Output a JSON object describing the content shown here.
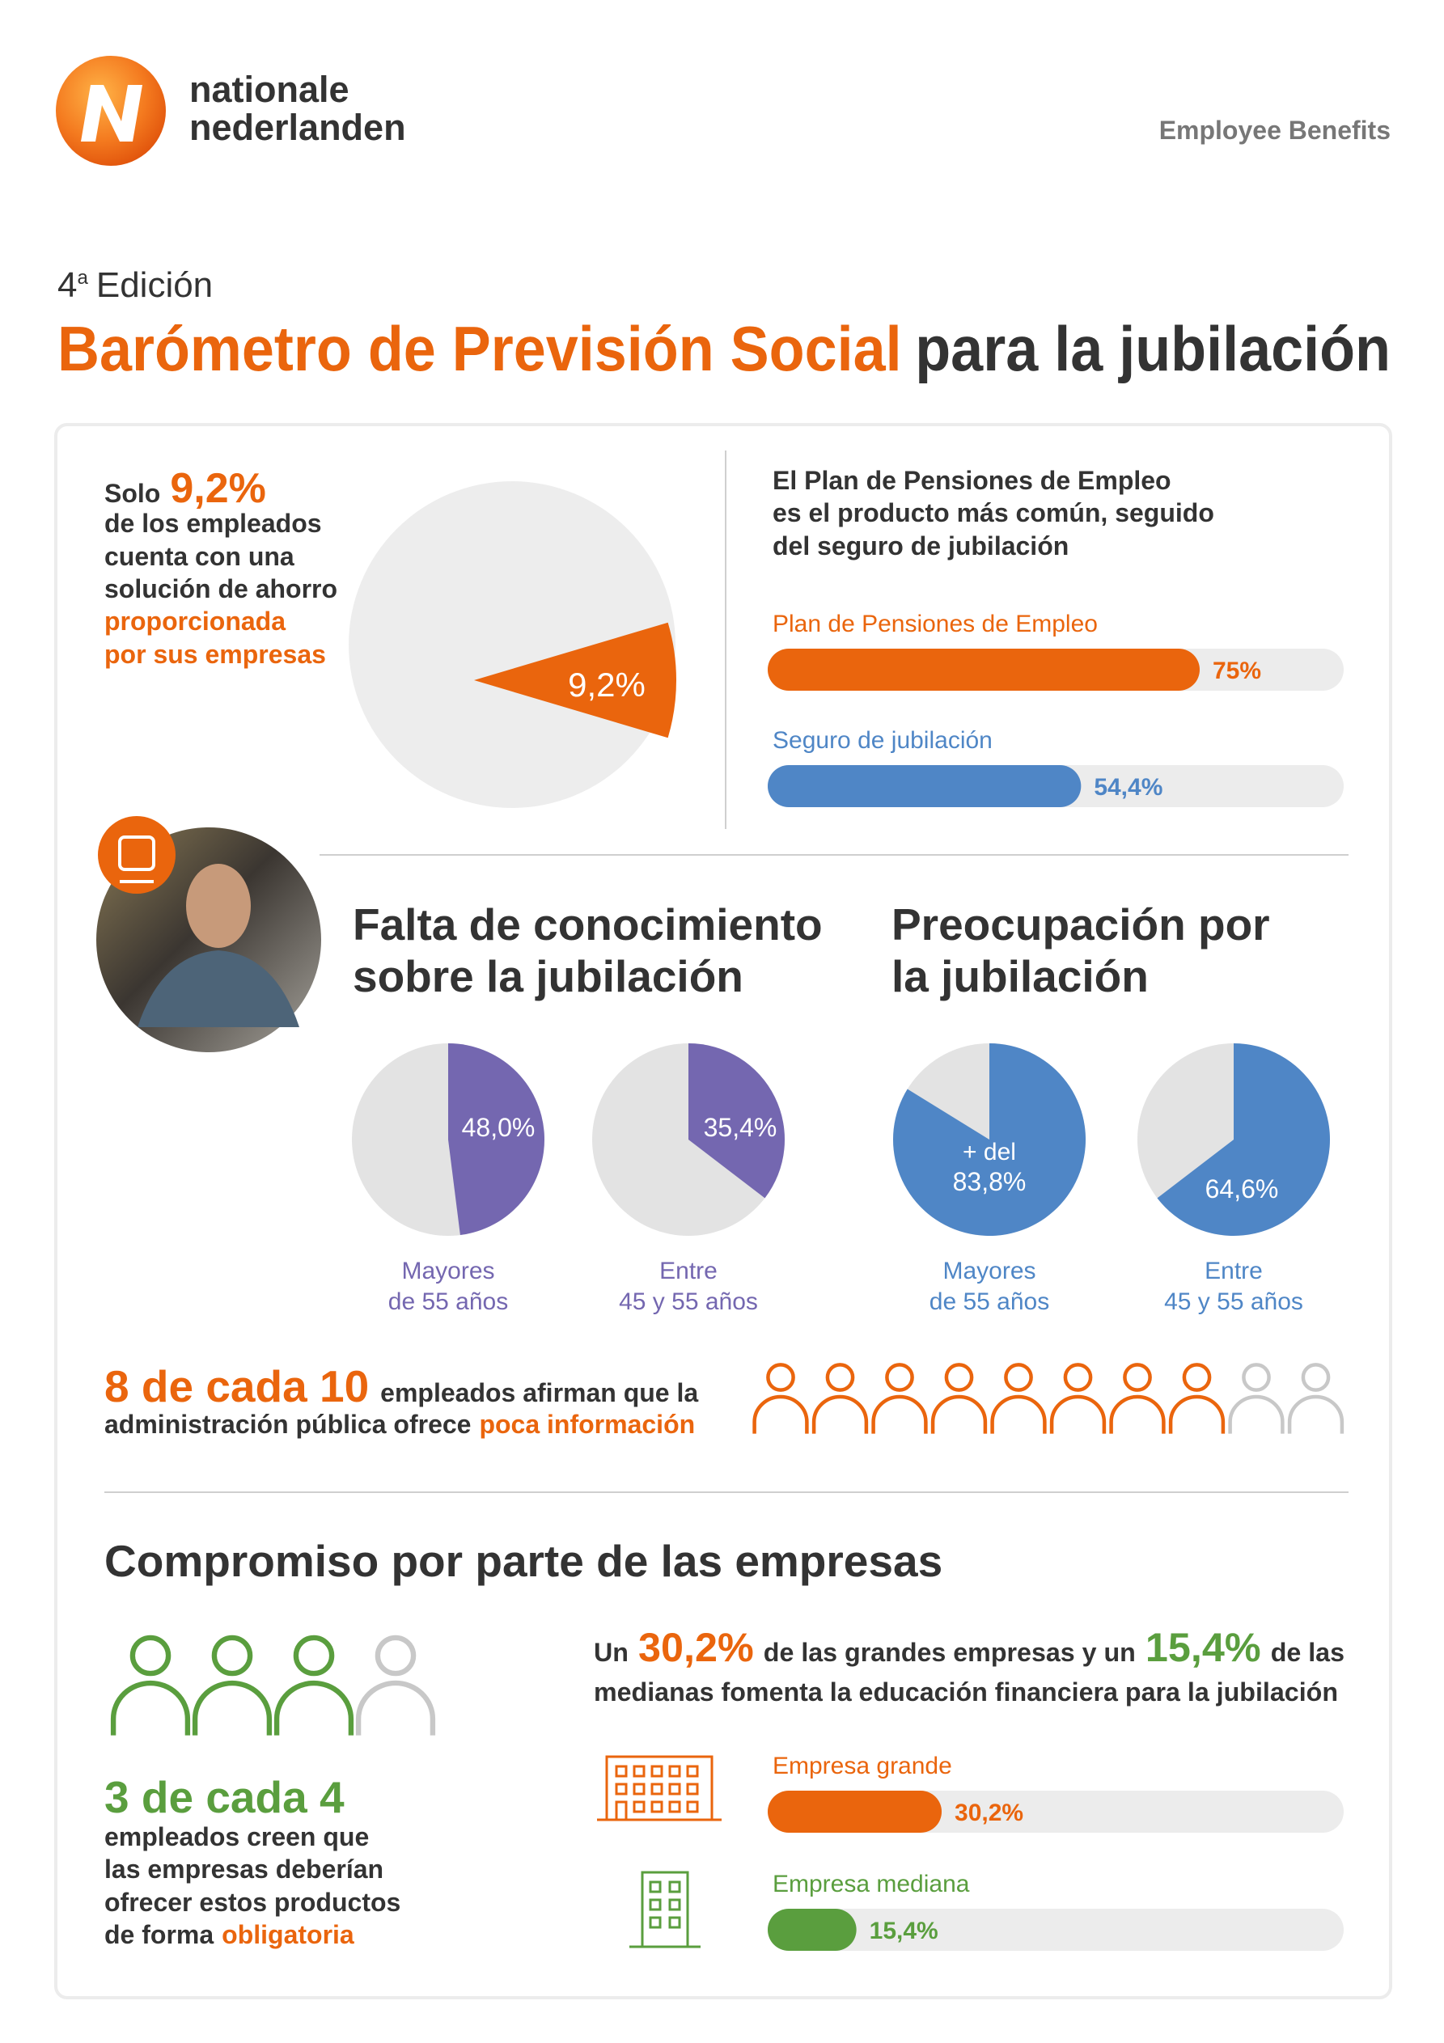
{
  "header": {
    "brand": [
      "nationale",
      "nederlanden"
    ],
    "tagline": "Employee Benefits",
    "edition": {
      "number": "4",
      "suffix": "a",
      "word": "Edición"
    },
    "title": {
      "highlight": "Barómetro de Previsión Social",
      "rest": "para la jubilación"
    }
  },
  "savings": {
    "lead": "Solo",
    "figure": "9,2%",
    "lines": [
      "de  los empleados",
      "cuenta con una",
      "solución de ahorro"
    ],
    "highlight_lines": [
      "proporcionada",
      "por sus empresas"
    ],
    "pie": {
      "value": 9.2,
      "value_label": "9,2%",
      "color": "#ea650d"
    }
  },
  "products": {
    "headline": [
      "El  Plan de Pensiones de Empleo",
      "es el producto más común, seguido",
      "del seguro de jubilación"
    ],
    "xlim": [
      0,
      100
    ],
    "bars": [
      {
        "name": "Plan de Pensiones de Empleo",
        "value": 75,
        "value_label": "75%",
        "color": "#ea650d"
      },
      {
        "name": "Seguro de jubilación",
        "value": 54.4,
        "value_label": "54,4%",
        "color": "#4f86c6"
      }
    ]
  },
  "knowledge": {
    "title": [
      "Falta de conocimiento",
      "sobre la jubilación"
    ],
    "color": "#7467b0",
    "pies": [
      {
        "category": [
          "Mayores",
          "de 55 años"
        ],
        "value": 48.0,
        "value_label": "48,0%"
      },
      {
        "category": [
          "Entre",
          "45 y 55 años"
        ],
        "value": 35.4,
        "value_label": "35,4%"
      }
    ]
  },
  "concern": {
    "title": [
      "Preocupación por",
      "la jubilación"
    ],
    "color": "#4f86c6",
    "pies": [
      {
        "category": [
          "Mayores",
          "de 55 años"
        ],
        "value": 83.8,
        "prefix": "+ del",
        "value_label": "83,8%"
      },
      {
        "category": [
          "Entre",
          "45 y 55 años"
        ],
        "value": 64.6,
        "value_label": "64,6%"
      }
    ]
  },
  "information": {
    "figure": "8 de cada 10",
    "line1": "empleados afirman que la",
    "line2": "administración pública ofrece",
    "highlight": "poca información",
    "people": {
      "highlighted": 8,
      "total": 10,
      "color": "#ea650d"
    }
  },
  "commitment": {
    "title": "Compromiso por parte de las empresas",
    "people": {
      "highlighted": 3,
      "total": 4,
      "color": "#5a9e3e"
    },
    "figure": "3 de cada 4",
    "lines": [
      "empleados creen que",
      "las empresas deberían",
      "ofrecer estos productos"
    ],
    "last_line": "de forma",
    "highlight": "obligatoria",
    "statement": {
      "parts": [
        "Un",
        "30,2%",
        "de las grandes empresas y un",
        "15,4%",
        "de las"
      ],
      "line2": "medianas fomenta la educación financiera para la jubilación"
    },
    "xlim": [
      0,
      100
    ],
    "bars": [
      {
        "name": "Empresa grande",
        "value": 30.2,
        "value_label": "30,2%",
        "color": "#ea650d"
      },
      {
        "name": "Empresa mediana",
        "value": 15.4,
        "value_label": "15,4%",
        "color": "#5a9e3e"
      }
    ]
  }
}
